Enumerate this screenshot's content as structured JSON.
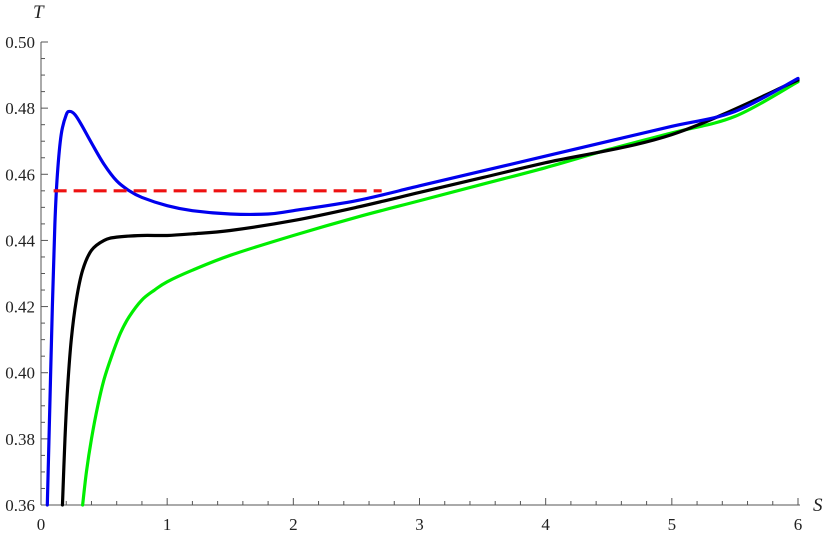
{
  "chart_data": {
    "type": "line",
    "xlabel": "S",
    "ylabel": "T",
    "xlim": [
      0,
      6
    ],
    "ylim": [
      0.36,
      0.5
    ],
    "x_ticks": [
      "0",
      "1",
      "2",
      "3",
      "4",
      "5",
      "6"
    ],
    "y_ticks": [
      "0.36",
      "0.38",
      "0.40",
      "0.42",
      "0.44",
      "0.46",
      "0.48",
      "0.50"
    ],
    "grid": false,
    "series": [
      {
        "color": "#00ee00",
        "style": "solid",
        "points": [
          [
            0.33,
            0.36
          ],
          [
            0.36,
            0.37
          ],
          [
            0.4,
            0.38
          ],
          [
            0.45,
            0.39
          ],
          [
            0.5,
            0.398
          ],
          [
            0.56,
            0.405
          ],
          [
            0.63,
            0.412
          ],
          [
            0.7,
            0.417
          ],
          [
            0.8,
            0.422
          ],
          [
            0.9,
            0.425
          ],
          [
            1.0,
            0.4275
          ],
          [
            1.2,
            0.431
          ],
          [
            1.5,
            0.4355
          ],
          [
            2.0,
            0.4415
          ],
          [
            2.5,
            0.447
          ],
          [
            3.0,
            0.452
          ],
          [
            3.5,
            0.457
          ],
          [
            4.0,
            0.462
          ],
          [
            4.5,
            0.4675
          ],
          [
            5.0,
            0.4725
          ],
          [
            5.5,
            0.4775
          ],
          [
            6.0,
            0.488
          ]
        ]
      },
      {
        "color": "#000000",
        "style": "solid",
        "points": [
          [
            0.17,
            0.36
          ],
          [
            0.19,
            0.38
          ],
          [
            0.21,
            0.395
          ],
          [
            0.24,
            0.41
          ],
          [
            0.28,
            0.422
          ],
          [
            0.33,
            0.431
          ],
          [
            0.4,
            0.437
          ],
          [
            0.5,
            0.44
          ],
          [
            0.6,
            0.441
          ],
          [
            0.8,
            0.4415
          ],
          [
            1.0,
            0.4415
          ],
          [
            1.2,
            0.442
          ],
          [
            1.5,
            0.443
          ],
          [
            2.0,
            0.446
          ],
          [
            2.5,
            0.45
          ],
          [
            3.0,
            0.4545
          ],
          [
            3.5,
            0.459
          ],
          [
            4.0,
            0.4635
          ],
          [
            5.0,
            0.472
          ],
          [
            6.0,
            0.4885
          ]
        ]
      },
      {
        "color": "#0000ee",
        "style": "solid",
        "points": [
          [
            0.05,
            0.36
          ],
          [
            0.07,
            0.39
          ],
          [
            0.09,
            0.42
          ],
          [
            0.11,
            0.445
          ],
          [
            0.13,
            0.46
          ],
          [
            0.16,
            0.472
          ],
          [
            0.2,
            0.478
          ],
          [
            0.23,
            0.479
          ],
          [
            0.27,
            0.478
          ],
          [
            0.32,
            0.475
          ],
          [
            0.4,
            0.4695
          ],
          [
            0.5,
            0.463
          ],
          [
            0.6,
            0.458
          ],
          [
            0.7,
            0.455
          ],
          [
            0.8,
            0.453
          ],
          [
            1.0,
            0.4505
          ],
          [
            1.2,
            0.449
          ],
          [
            1.5,
            0.448
          ],
          [
            1.8,
            0.448
          ],
          [
            2.0,
            0.449
          ],
          [
            2.5,
            0.452
          ],
          [
            3.0,
            0.4565
          ],
          [
            3.5,
            0.461
          ],
          [
            4.0,
            0.4655
          ],
          [
            4.5,
            0.47
          ],
          [
            5.0,
            0.4745
          ],
          [
            5.5,
            0.479
          ],
          [
            6.0,
            0.489
          ]
        ]
      },
      {
        "color": "#ee1111",
        "style": "dashed",
        "points": [
          [
            0.1,
            0.455
          ],
          [
            2.7,
            0.455
          ]
        ]
      }
    ]
  }
}
